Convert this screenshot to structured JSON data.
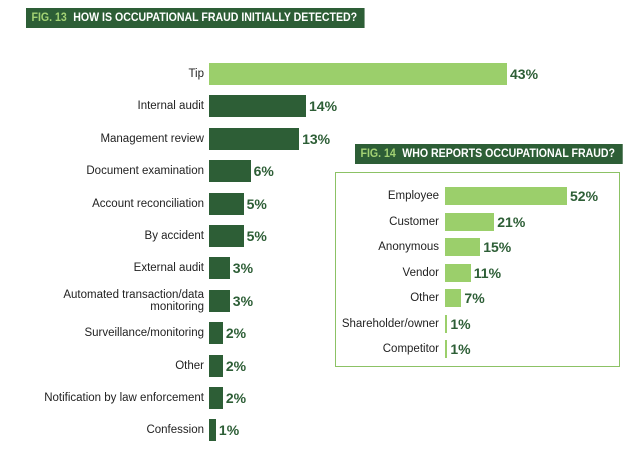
{
  "chart_data": [
    {
      "type": "bar",
      "orientation": "horizontal",
      "figure_number": "FIG. 13",
      "title": "HOW IS OCCUPATIONAL FRAUD INITIALLY DETECTED?",
      "categories": [
        "Tip",
        "Internal audit",
        "Management review",
        "Document examination",
        "Account reconciliation",
        "By accident",
        "External audit",
        "Automated transaction/data monitoring",
        "Surveillance/monitoring",
        "Other",
        "Notification by law enforcement",
        "Confession"
      ],
      "values": [
        43,
        14,
        13,
        6,
        5,
        5,
        3,
        3,
        2,
        2,
        2,
        1
      ],
      "value_labels": [
        "43%",
        "14%",
        "13%",
        "6%",
        "5%",
        "5%",
        "3%",
        "3%",
        "2%",
        "2%",
        "2%",
        "1%"
      ],
      "colors": {
        "highlight": "#9bcf6b",
        "default": "#2d5e36"
      },
      "highlight_index": 0,
      "xlabel": "",
      "ylabel": ""
    },
    {
      "type": "bar",
      "orientation": "horizontal",
      "figure_number": "FIG. 14",
      "title": "WHO REPORTS OCCUPATIONAL FRAUD?",
      "categories": [
        "Employee",
        "Customer",
        "Anonymous",
        "Vendor",
        "Other",
        "Shareholder/owner",
        "Competitor"
      ],
      "values": [
        52,
        21,
        15,
        11,
        7,
        1,
        1
      ],
      "value_labels": [
        "52%",
        "21%",
        "15%",
        "11%",
        "7%",
        "1%",
        "1%"
      ],
      "colors": {
        "bar": "#9bcf6b",
        "border": "#8cc265"
      },
      "xlabel": "",
      "ylabel": ""
    }
  ],
  "colors": {
    "header_bg": "#2d5e36",
    "header_num": "#a3d274",
    "value_text": "#2d5e36"
  }
}
